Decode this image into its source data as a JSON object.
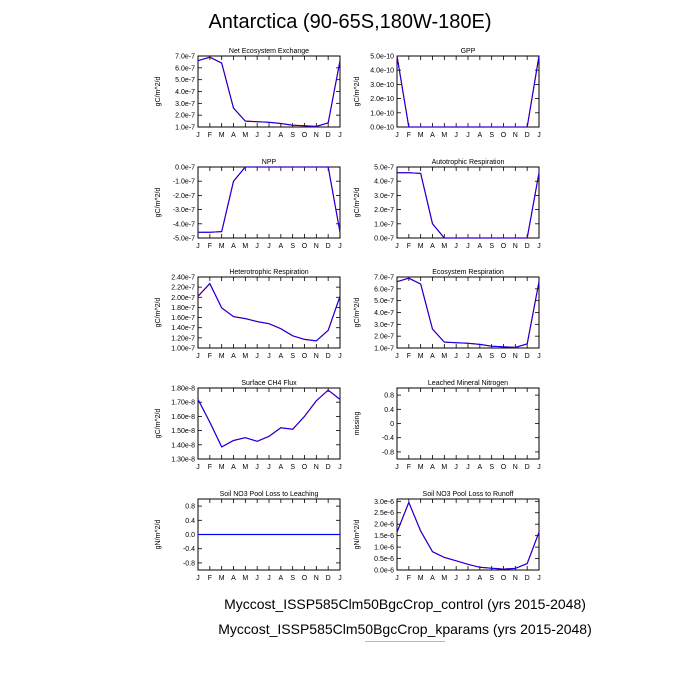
{
  "title": "Antarctica (90-65S,180W-180E)",
  "legend": [
    {
      "label": "Myccost_ISSP585Clm50BgcCrop_control (yrs 2015-2048)",
      "color": "#ff0000"
    },
    {
      "label": "Myccost_ISSP585Clm50BgcCrop_kparams (yrs 2015-2048)",
      "color": "#0000ff"
    }
  ],
  "chart_data": [
    {
      "type": "line",
      "title": "Net Ecosystem Exchange",
      "ylabel": "gC/m^2/d",
      "x": [
        "J",
        "F",
        "M",
        "A",
        "M",
        "J",
        "J",
        "A",
        "S",
        "O",
        "N",
        "D",
        "J"
      ],
      "yticks": [
        "1.0e-7",
        "2.0e-7",
        "3.0e-7",
        "4.0e-7",
        "5.0e-7",
        "6.0e-7",
        "7.0e-7"
      ],
      "yrange": [
        1e-07,
        7e-07
      ],
      "series": [
        {
          "values": [
            6.6e-07,
            6.9e-07,
            6.4e-07,
            2.6e-07,
            1.5e-07,
            1.45e-07,
            1.4e-07,
            1.3e-07,
            1.15e-07,
            1.1e-07,
            1.05e-07,
            1.35e-07,
            6.6e-07
          ]
        }
      ]
    },
    {
      "type": "line",
      "title": "GPP",
      "ylabel": "gC/m^2/d",
      "x": [
        "J",
        "F",
        "M",
        "A",
        "M",
        "J",
        "J",
        "A",
        "S",
        "O",
        "N",
        "D",
        "J"
      ],
      "yticks": [
        "0.0e-10",
        "1.0e-10",
        "2.0e-10",
        "3.0e-10",
        "4.0e-10",
        "5.0e-10"
      ],
      "yrange": [
        0,
        5e-10
      ],
      "series": [
        {
          "values": [
            5e-10,
            0,
            0,
            0,
            0,
            0,
            0,
            0,
            0,
            0,
            0,
            0,
            5e-10
          ]
        }
      ]
    },
    {
      "type": "line",
      "title": "NPP",
      "ylabel": "gC/m^2/d",
      "x": [
        "J",
        "F",
        "M",
        "A",
        "M",
        "J",
        "J",
        "A",
        "S",
        "O",
        "N",
        "D",
        "J"
      ],
      "yticks": [
        "-5.0e-7",
        "-4.0e-7",
        "-3.0e-7",
        "-2.0e-7",
        "-1.0e-7",
        "0.0e-7"
      ],
      "yrange": [
        -5e-07,
        0
      ],
      "series": [
        {
          "values": [
            -4.6e-07,
            -4.6e-07,
            -4.55e-07,
            -1e-07,
            0,
            0,
            0,
            0,
            0,
            0,
            0,
            0,
            -4.6e-07
          ]
        }
      ]
    },
    {
      "type": "line",
      "title": "Autotrophic Respiration",
      "ylabel": "gC/m^2/d",
      "x": [
        "J",
        "F",
        "M",
        "A",
        "M",
        "J",
        "J",
        "A",
        "S",
        "O",
        "N",
        "D",
        "J"
      ],
      "yticks": [
        "0.0e-7",
        "1.0e-7",
        "2.0e-7",
        "3.0e-7",
        "4.0e-7",
        "5.0e-7"
      ],
      "yrange": [
        0,
        5e-07
      ],
      "series": [
        {
          "values": [
            4.6e-07,
            4.6e-07,
            4.55e-07,
            1e-07,
            0,
            0,
            0,
            0,
            0,
            0,
            0,
            0,
            4.6e-07
          ]
        }
      ]
    },
    {
      "type": "line",
      "title": "Heterotrophic Respiration",
      "ylabel": "gC/m^2/d",
      "x": [
        "J",
        "F",
        "M",
        "A",
        "M",
        "J",
        "J",
        "A",
        "S",
        "O",
        "N",
        "D",
        "J"
      ],
      "yticks": [
        "1.00e-7",
        "1.20e-7",
        "1.40e-7",
        "1.60e-7",
        "1.80e-7",
        "2.00e-7",
        "2.20e-7",
        "2.40e-7"
      ],
      "yrange": [
        1e-07,
        2.4e-07
      ],
      "series": [
        {
          "values": [
            2.02e-07,
            2.27e-07,
            1.79e-07,
            1.62e-07,
            1.58e-07,
            1.52e-07,
            1.48e-07,
            1.38e-07,
            1.24e-07,
            1.17e-07,
            1.14e-07,
            1.35e-07,
            2.02e-07
          ]
        }
      ]
    },
    {
      "type": "line",
      "title": "Ecosystem Respiration",
      "ylabel": "gC/m^2/d",
      "x": [
        "J",
        "F",
        "M",
        "A",
        "M",
        "J",
        "J",
        "A",
        "S",
        "O",
        "N",
        "D",
        "J"
      ],
      "yticks": [
        "1.0e-7",
        "2.0e-7",
        "3.0e-7",
        "4.0e-7",
        "5.0e-7",
        "6.0e-7",
        "7.0e-7"
      ],
      "yrange": [
        1e-07,
        7e-07
      ],
      "series": [
        {
          "values": [
            6.6e-07,
            6.9e-07,
            6.4e-07,
            2.6e-07,
            1.5e-07,
            1.45e-07,
            1.4e-07,
            1.3e-07,
            1.15e-07,
            1.1e-07,
            1.05e-07,
            1.35e-07,
            6.6e-07
          ]
        }
      ]
    },
    {
      "type": "line",
      "title": "Surface CH4 Flux",
      "ylabel": "gC/m^2/d",
      "x": [
        "J",
        "F",
        "M",
        "A",
        "M",
        "J",
        "J",
        "A",
        "S",
        "O",
        "N",
        "D",
        "J"
      ],
      "yticks": [
        "1.30e-8",
        "1.40e-8",
        "1.50e-8",
        "1.60e-8",
        "1.70e-8",
        "1.80e-8"
      ],
      "yrange": [
        1.3e-08,
        1.8e-08
      ],
      "series": [
        {
          "values": [
            1.72e-08,
            1.56e-08,
            1.385e-08,
            1.43e-08,
            1.45e-08,
            1.425e-08,
            1.46e-08,
            1.52e-08,
            1.51e-08,
            1.6e-08,
            1.71e-08,
            1.785e-08,
            1.72e-08
          ]
        }
      ]
    },
    {
      "type": "line",
      "title": "Leached Mineral Nitrogen",
      "ylabel": "missing",
      "x": [
        "J",
        "F",
        "M",
        "A",
        "M",
        "J",
        "J",
        "A",
        "S",
        "O",
        "N",
        "D",
        "J"
      ],
      "yticks": [
        "-0.8",
        "-0.4",
        "0",
        "0.4",
        "0.8"
      ],
      "yrange": [
        -1,
        1
      ],
      "series": []
    },
    {
      "type": "line",
      "title": "Soil NO3 Pool Loss to Leaching",
      "ylabel": "gN/m^2/d",
      "x": [
        "J",
        "F",
        "M",
        "A",
        "M",
        "J",
        "J",
        "A",
        "S",
        "O",
        "N",
        "D",
        "J"
      ],
      "yticks": [
        "-0.8",
        "-0.4",
        "0.0",
        "0.4",
        "0.8"
      ],
      "yrange": [
        -1,
        1
      ],
      "series": [
        {
          "values": [
            0,
            0,
            0,
            0,
            0,
            0,
            0,
            0,
            0,
            0,
            0,
            0,
            0
          ]
        }
      ]
    },
    {
      "type": "line",
      "title": "Soil NO3 Pool Loss to Runoff",
      "ylabel": "gN/m^2/d",
      "x": [
        "J",
        "F",
        "M",
        "A",
        "M",
        "J",
        "J",
        "A",
        "S",
        "O",
        "N",
        "D",
        "J"
      ],
      "yticks": [
        "0.0e-6",
        "0.5e-6",
        "1.0e-6",
        "1.5e-6",
        "2.0e-6",
        "2.5e-6",
        "3.0e-6"
      ],
      "yrange": [
        0,
        3.1e-06
      ],
      "series": [
        {
          "values": [
            1.65e-06,
            2.95e-06,
            1.7e-06,
            8e-07,
            5.5e-07,
            4e-07,
            2.5e-07,
            1.2e-07,
            8e-08,
            4e-08,
            7e-08,
            2.8e-07,
            1.65e-06
          ]
        }
      ]
    }
  ]
}
